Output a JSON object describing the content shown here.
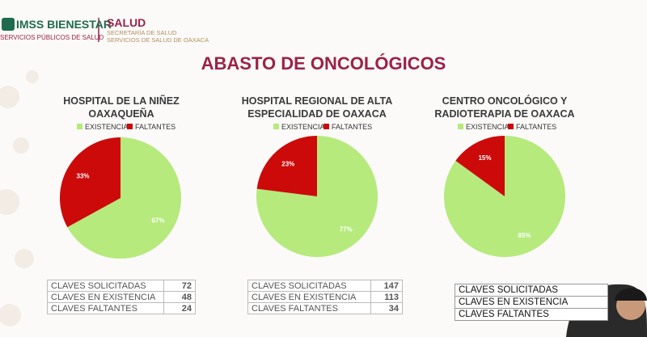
{
  "header": {
    "brand": "IMSS BIENESTAR",
    "brand_sub": "SERVICIOS PÚBLICOS DE SALUD",
    "ministry": "SALUD",
    "ministry_sub1": "SECRETARÍA DE SALUD",
    "ministry_sub2": "SERVICIOS DE SALUD DE OAXACA"
  },
  "title": "ABASTO DE ONCOLÓGICOS",
  "chart_data": [
    {
      "type": "pie",
      "title": "HOSPITAL DE LA NIÑEZ OAXAQUEÑA",
      "categories": [
        "EXISTENCIA",
        "FALTANTES"
      ],
      "values": [
        67,
        33
      ],
      "value_labels": [
        "67%",
        "33%"
      ],
      "colors": [
        "#b6ea7c",
        "#cc0a0a"
      ]
    },
    {
      "type": "pie",
      "title": "HOSPITAL REGIONAL DE ALTA ESPECIALIDAD DE OAXACA",
      "categories": [
        "EXISTENCIA",
        "FALTANTES"
      ],
      "values": [
        77,
        23
      ],
      "value_labels": [
        "77%",
        "23%"
      ],
      "colors": [
        "#b6ea7c",
        "#cc0a0a"
      ]
    },
    {
      "type": "pie",
      "title": "CENTRO ONCOLÓGICO Y RADIOTERAPIA DE OAXACA",
      "categories": [
        "EXISTENCIA",
        "FALTANTES"
      ],
      "values": [
        85,
        15
      ],
      "value_labels": [
        "85%",
        "15%"
      ],
      "colors": [
        "#b6ea7c",
        "#cc0a0a"
      ]
    }
  ],
  "tables": [
    {
      "rows": [
        [
          "CLAVES SOLICITADAS",
          "72"
        ],
        [
          "CLAVES EN EXISTENCIA",
          "48"
        ],
        [
          "CLAVES FALTANTES",
          "24"
        ]
      ]
    },
    {
      "rows": [
        [
          "CLAVES SOLICITADAS",
          "147"
        ],
        [
          "CLAVES EN EXISTENCIA",
          "113"
        ],
        [
          "CLAVES FALTANTES",
          "34"
        ]
      ]
    },
    {
      "rows": [
        [
          "CLAVES SOLICITADAS"
        ],
        [
          "CLAVES EN EXISTENCIA"
        ],
        [
          "CLAVES FALTANTES"
        ]
      ]
    }
  ]
}
